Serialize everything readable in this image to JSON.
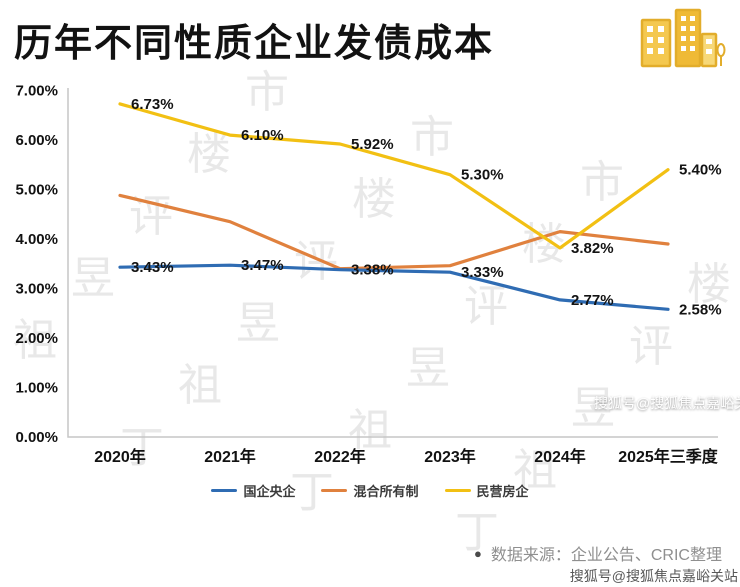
{
  "title": "历年不同性质企业发债成本",
  "chart_data": {
    "type": "line",
    "title": "历年不同性质企业发债成本",
    "categories": [
      "2020年",
      "2021年",
      "2022年",
      "2023年",
      "2024年",
      "2025年三季度"
    ],
    "y_tick_labels": [
      "0.00%",
      "1.00%",
      "2.00%",
      "3.00%",
      "4.00%",
      "5.00%",
      "6.00%",
      "7.00%"
    ],
    "ylim": [
      0,
      7
    ],
    "grid": false,
    "legend_position": "bottom",
    "series": [
      {
        "name": "国企央企",
        "color": "#2f6cb3",
        "values": [
          3.43,
          3.47,
          3.38,
          3.33,
          2.77,
          2.58
        ],
        "point_labels": [
          "3.43%",
          "3.47%",
          "3.38%",
          "3.33%",
          "2.77%",
          "2.58%"
        ]
      },
      {
        "name": "混合所有制",
        "color": "#e0813e",
        "values": [
          4.88,
          4.35,
          3.4,
          3.46,
          4.15,
          3.9
        ],
        "point_labels": [
          "",
          "",
          "",
          "",
          "",
          ""
        ]
      },
      {
        "name": "民营房企",
        "color": "#f2c013",
        "values": [
          6.73,
          6.1,
          5.92,
          5.3,
          3.82,
          5.4
        ],
        "point_labels": [
          "6.73%",
          "6.10%",
          "5.92%",
          "5.30%",
          "3.82%",
          "5.40%"
        ]
      }
    ]
  },
  "footer": {
    "bullet": "●",
    "source_text": "数据来源：企业公告、CRIC整理"
  },
  "watermarks": {
    "diagonal_phrase": "丁祖昱评楼市",
    "sohu_mid": "搜狐号@搜狐焦点嘉峪关站",
    "sohu_bottom": "搜狐号@搜狐焦点嘉峪关站"
  }
}
